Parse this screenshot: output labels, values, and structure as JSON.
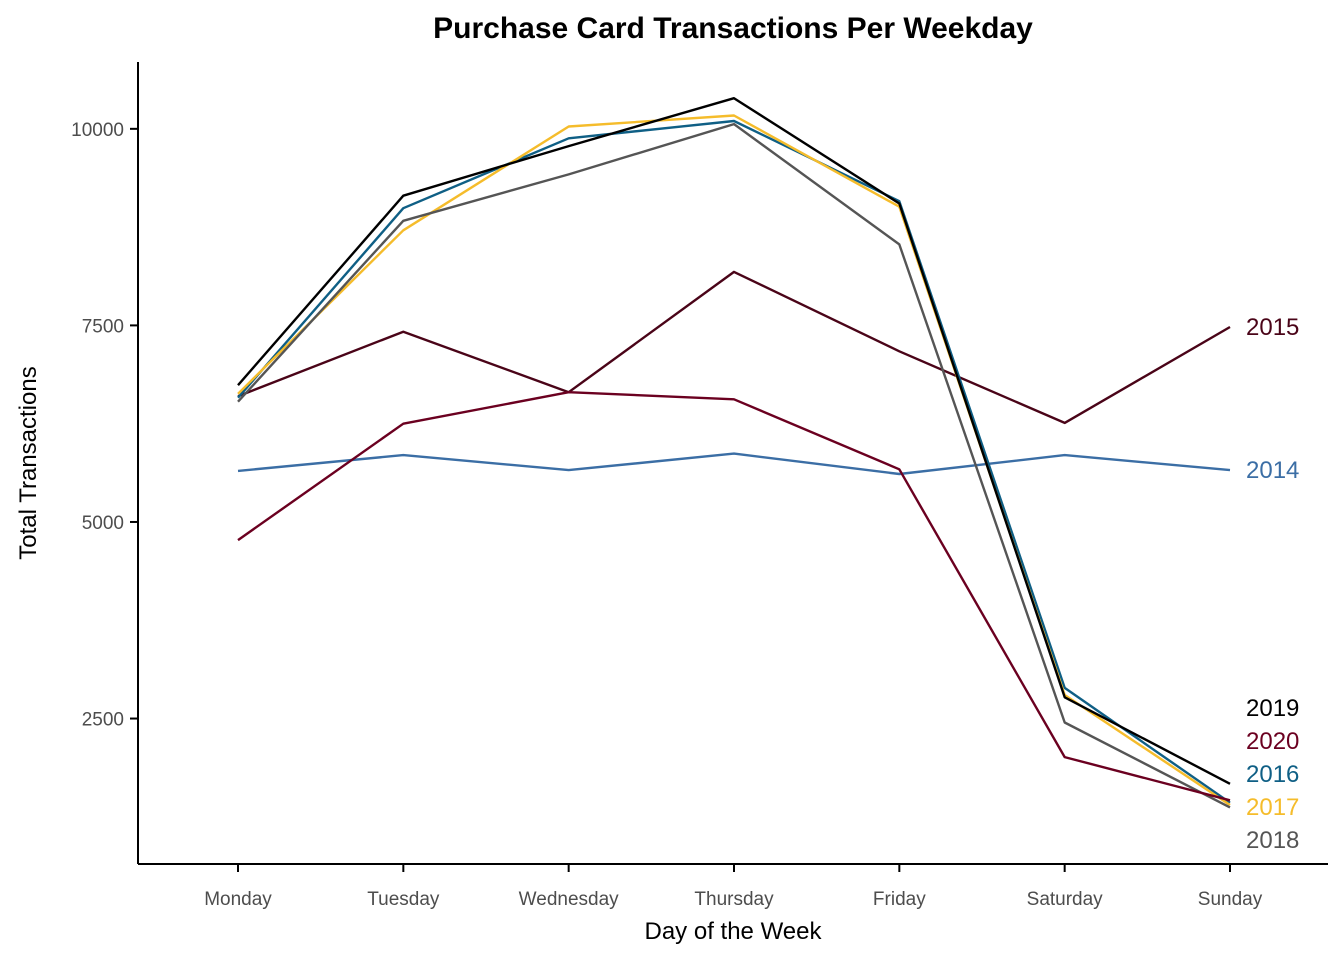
{
  "chart_data": {
    "type": "line",
    "title": "Purchase Card Transactions Per Weekday",
    "xlabel": "Day of the Week",
    "ylabel": "Total Transactions",
    "categories": [
      "Monday",
      "Tuesday",
      "Wednesday",
      "Thursday",
      "Friday",
      "Saturday",
      "Sunday"
    ],
    "yticks": [
      2500,
      5000,
      7500,
      10000
    ],
    "ylim": [
      650,
      10850
    ],
    "grid": false,
    "legend": "direct labels at right end of lines",
    "series": [
      {
        "name": "2014",
        "color": "#3b6ea5",
        "values": [
          5650,
          5850,
          5660,
          5870,
          5610,
          5850,
          5660
        ]
      },
      {
        "name": "2015",
        "color": "#4a0418",
        "values": [
          6600,
          7420,
          6650,
          8180,
          7170,
          6260,
          7480
        ]
      },
      {
        "name": "2016",
        "color": "#0f5f85",
        "values": [
          6580,
          8990,
          9880,
          10100,
          9080,
          2890,
          1430
        ]
      },
      {
        "name": "2017",
        "color": "#f5bc2b",
        "values": [
          6630,
          8710,
          10030,
          10170,
          9010,
          2800,
          1400
        ]
      },
      {
        "name": "2018",
        "color": "#555555",
        "values": [
          6530,
          8830,
          9420,
          10060,
          8530,
          2450,
          1370
        ]
      },
      {
        "name": "2019",
        "color": "#000000",
        "values": [
          6740,
          9150,
          9780,
          10390,
          9050,
          2770,
          1670
        ]
      },
      {
        "name": "2020",
        "color": "#6b0020",
        "values": [
          4770,
          6250,
          6650,
          6560,
          5670,
          2010,
          1460
        ]
      }
    ]
  }
}
